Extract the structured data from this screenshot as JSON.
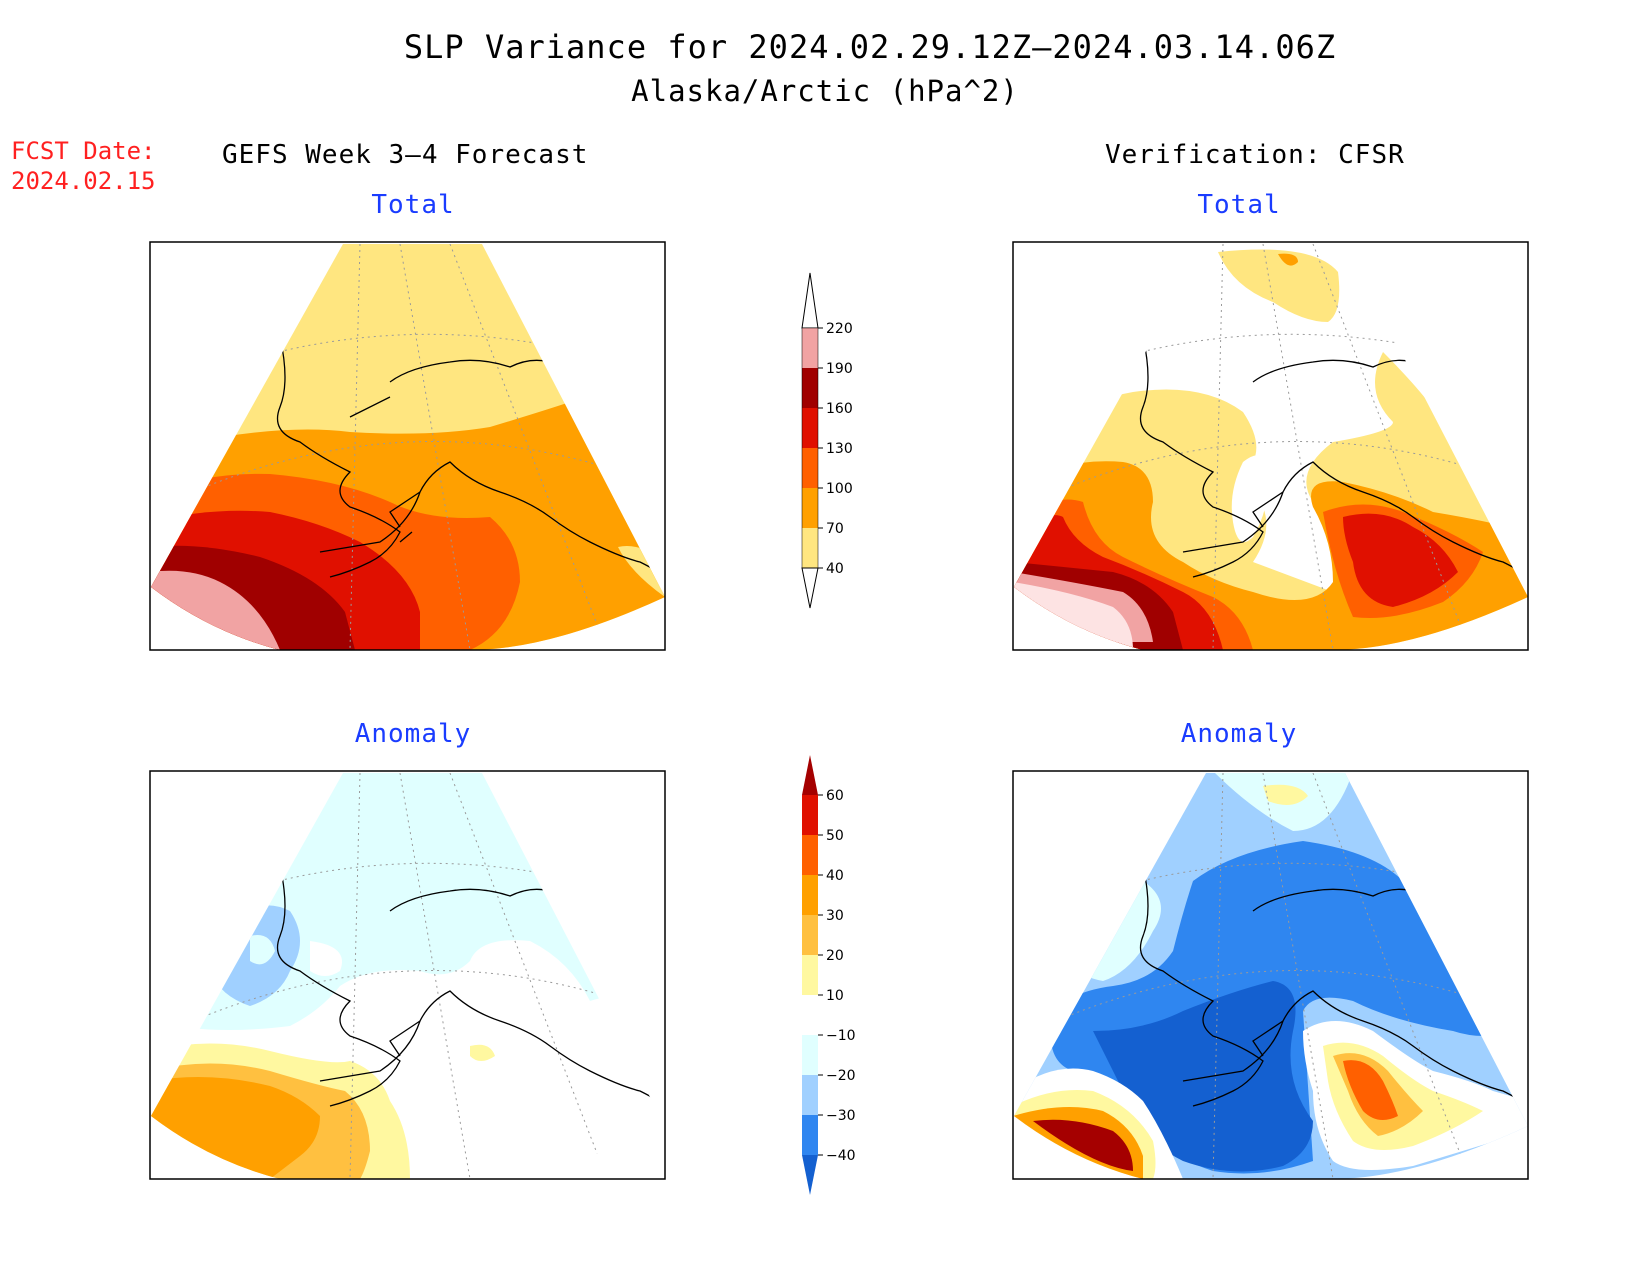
{
  "title": "SLP Variance for 2024.02.29.12Z–2024.03.14.06Z",
  "subtitle": "Alaska/Arctic (hPa^2)",
  "fcst_date_label": "FCST Date:",
  "fcst_date_value": "2024.02.15",
  "left_heading": "GEFS Week 3–4 Forecast",
  "right_heading": "Verification: CFSR",
  "panels": {
    "forecast_total": "Total",
    "verification_total": "Total",
    "forecast_anomaly": "Anomaly",
    "verification_anomaly": "Anomaly"
  },
  "total_colorbar": {
    "labels": [
      "220",
      "190",
      "160",
      "130",
      "100",
      "70",
      "40"
    ],
    "colors": [
      "#fde3e3",
      "#f1a3a3",
      "#a00000",
      "#e01000",
      "#ff6000",
      "#ffa000",
      "#ffe680"
    ]
  },
  "anomaly_colorbar": {
    "labels": [
      "60",
      "50",
      "40",
      "30",
      "20",
      "10",
      "−10",
      "−20",
      "−30",
      "−40"
    ],
    "colors": [
      "#a50000",
      "#e01000",
      "#ff6000",
      "#ffa000",
      "#ffc040",
      "#fff8a0",
      "#ffffff",
      "#e0ffff",
      "#a0d0ff",
      "#2f86f0",
      "#1460d0"
    ]
  }
}
